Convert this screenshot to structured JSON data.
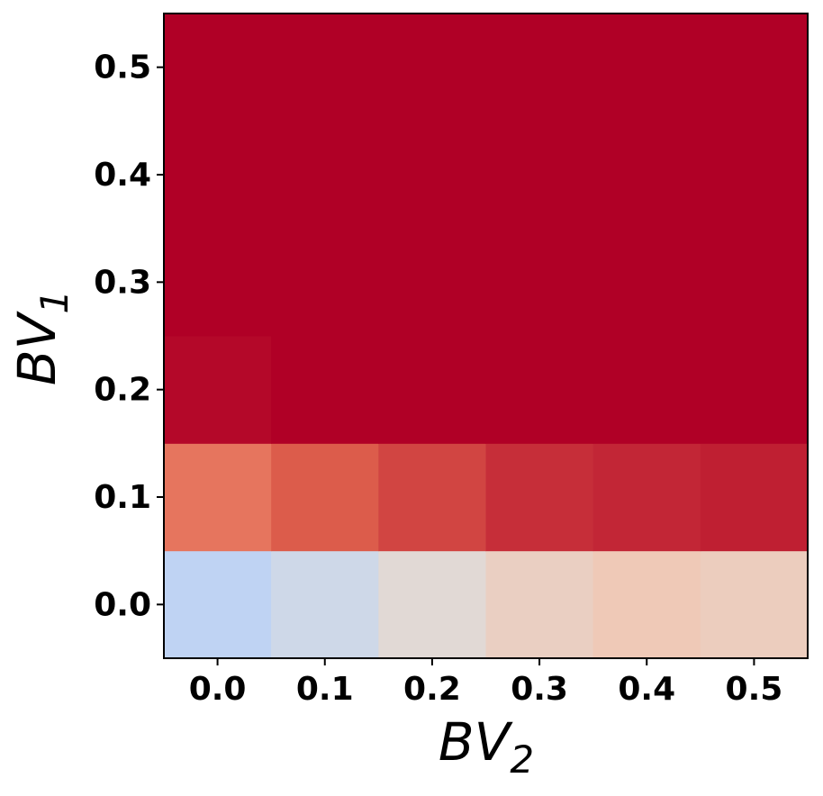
{
  "chart_data": {
    "type": "heatmap",
    "xlabel": "BV",
    "xlabel_subscript": "2",
    "ylabel": "BV",
    "ylabel_subscript": "1",
    "x": [
      0,
      0.1,
      0.2,
      0.3,
      0.4,
      0.5
    ],
    "y": [
      0,
      0.1,
      0.2,
      0.3,
      0.4,
      0.5
    ],
    "z": [
      [
        0.4,
        0.45,
        0.52,
        0.57,
        0.6,
        0.58
      ],
      [
        0.83,
        0.88,
        0.91,
        0.94,
        0.95,
        0.96
      ],
      [
        0.99,
        1.0,
        1.0,
        1.0,
        1.0,
        1.0
      ],
      [
        1.0,
        1.0,
        1.0,
        1.0,
        1.0,
        1.0
      ],
      [
        1.0,
        1.0,
        1.0,
        1.0,
        1.0,
        1.0
      ],
      [
        1.0,
        1.0,
        1.0,
        1.0,
        1.0,
        1.0
      ]
    ],
    "zlim": [
      0,
      1
    ],
    "colormap": "coolwarm",
    "xlim": [
      -0.05,
      0.55
    ],
    "ylim": [
      -0.05,
      0.55
    ],
    "xticks": [
      {
        "value": 0,
        "label": "0.0"
      },
      0.1,
      0.2,
      0.3,
      0.4,
      0.5
    ],
    "yticks": [
      {
        "value": 0,
        "label": "0.0"
      },
      0.1,
      0.2,
      0.3,
      0.4,
      0.5
    ]
  }
}
